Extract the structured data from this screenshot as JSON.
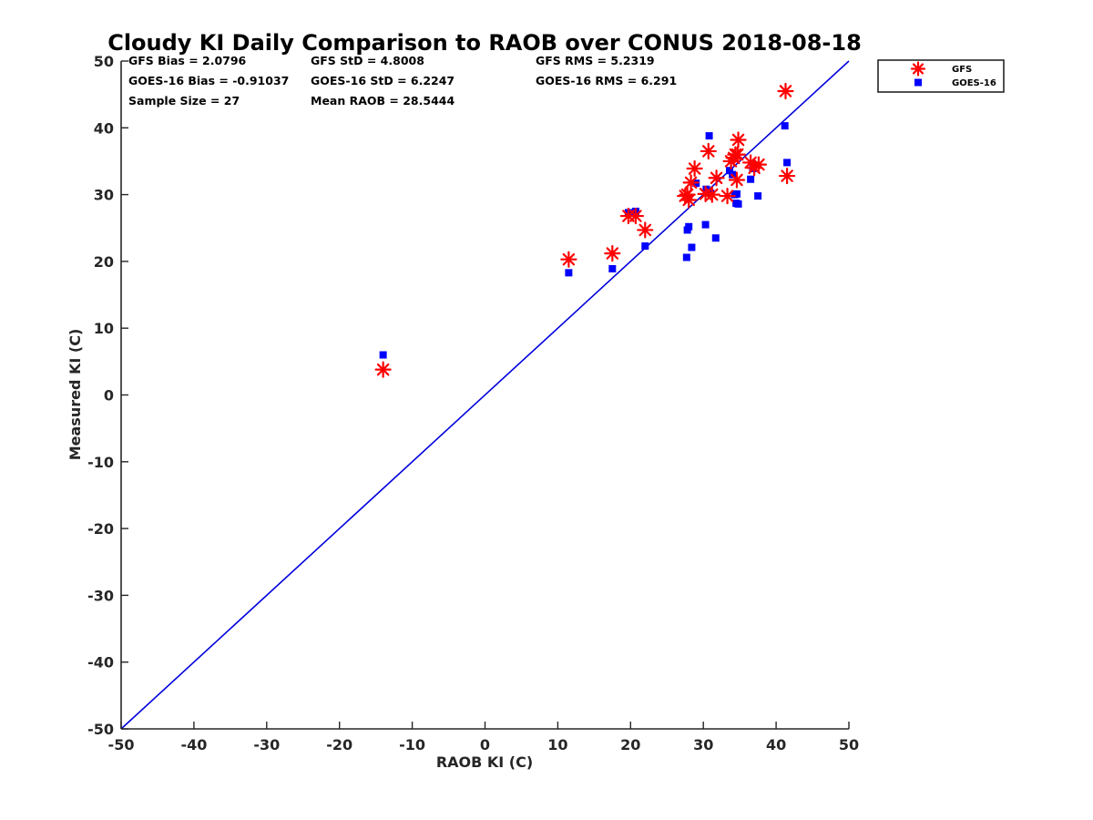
{
  "chart_data": {
    "type": "scatter",
    "title": "Cloudy KI Daily Comparison to RAOB over CONUS 2018-08-18",
    "xlabel": "RAOB KI (C)",
    "ylabel": "Measured KI (C)",
    "xlim": [
      -50,
      50
    ],
    "ylim": [
      -50,
      50
    ],
    "xticks": [
      "-50",
      "-40",
      "-30",
      "-20",
      "-10",
      "0",
      "10",
      "20",
      "30",
      "40",
      "50"
    ],
    "yticks": [
      "50",
      "40",
      "30",
      "20",
      "10",
      "0",
      "-10",
      "-20",
      "-30",
      "-40",
      "-50"
    ],
    "xtick_values": [
      -50,
      -40,
      -30,
      -20,
      -10,
      0,
      10,
      20,
      30,
      40,
      50
    ],
    "ytick_values": [
      50,
      40,
      30,
      20,
      10,
      0,
      -10,
      -20,
      -30,
      -40,
      -50
    ],
    "reference_line": {
      "name": "1:1 line",
      "color": "#0000dd",
      "x": [
        -50,
        50
      ],
      "y": [
        -50,
        50
      ]
    },
    "legend_position": "outside-top-right",
    "series": [
      {
        "name": "GFS",
        "marker": "asterisk",
        "color": "#ff0000",
        "x": [
          -14,
          11.5,
          17.5,
          19.7,
          20.7,
          22,
          27.5,
          27.8,
          28,
          28.3,
          28.8,
          30.3,
          30.7,
          31.2,
          31.8,
          33.3,
          33.8,
          34.2,
          34.4,
          34.6,
          34.8,
          34.7,
          36.5,
          37,
          37.6,
          41.3,
          41.5
        ],
        "y": [
          3.8,
          20.3,
          21.2,
          26.8,
          26.8,
          24.7,
          29.8,
          30,
          29.2,
          31.8,
          33.9,
          30.1,
          36.5,
          30,
          32.5,
          29.8,
          35,
          35.5,
          36,
          32.2,
          38.2,
          36,
          34.8,
          34,
          34.5,
          45.5,
          32.8
        ]
      },
      {
        "name": "GOES-16",
        "marker": "square",
        "color": "#0000ff",
        "x": [
          -14,
          11.5,
          17.5,
          19.7,
          20.7,
          22,
          27.7,
          27.8,
          28,
          28.4,
          29,
          30.3,
          30.4,
          30.8,
          31,
          31.7,
          33.6,
          34,
          34.3,
          34.5,
          34.6,
          34.8,
          36.5,
          36.8,
          37.5,
          41.2,
          41.5
        ],
        "y": [
          6,
          18.3,
          18.9,
          27.3,
          27.5,
          22.3,
          20.6,
          24.7,
          25.2,
          22.1,
          31.7,
          25.5,
          30.8,
          38.8,
          30.2,
          23.5,
          33.6,
          33,
          30,
          28.7,
          30.1,
          28.6,
          32.3,
          33.9,
          29.8,
          40.3,
          34.8
        ]
      }
    ],
    "stats": {
      "gfs_bias": "GFS Bias = 2.0796",
      "gfs_std": "GFS StD = 4.8008",
      "gfs_rms": "GFS RMS = 5.2319",
      "goes_bias": "GOES-16 Bias = -0.91037",
      "goes_std": "GOES-16 StD = 6.2247",
      "goes_rms": "GOES-16 RMS = 6.291",
      "sample_size": "Sample Size = 27",
      "mean_raob": "Mean RAOB = 28.5444"
    },
    "legend": {
      "gfs_label": "GFS",
      "goes_label": "GOES-16"
    }
  }
}
